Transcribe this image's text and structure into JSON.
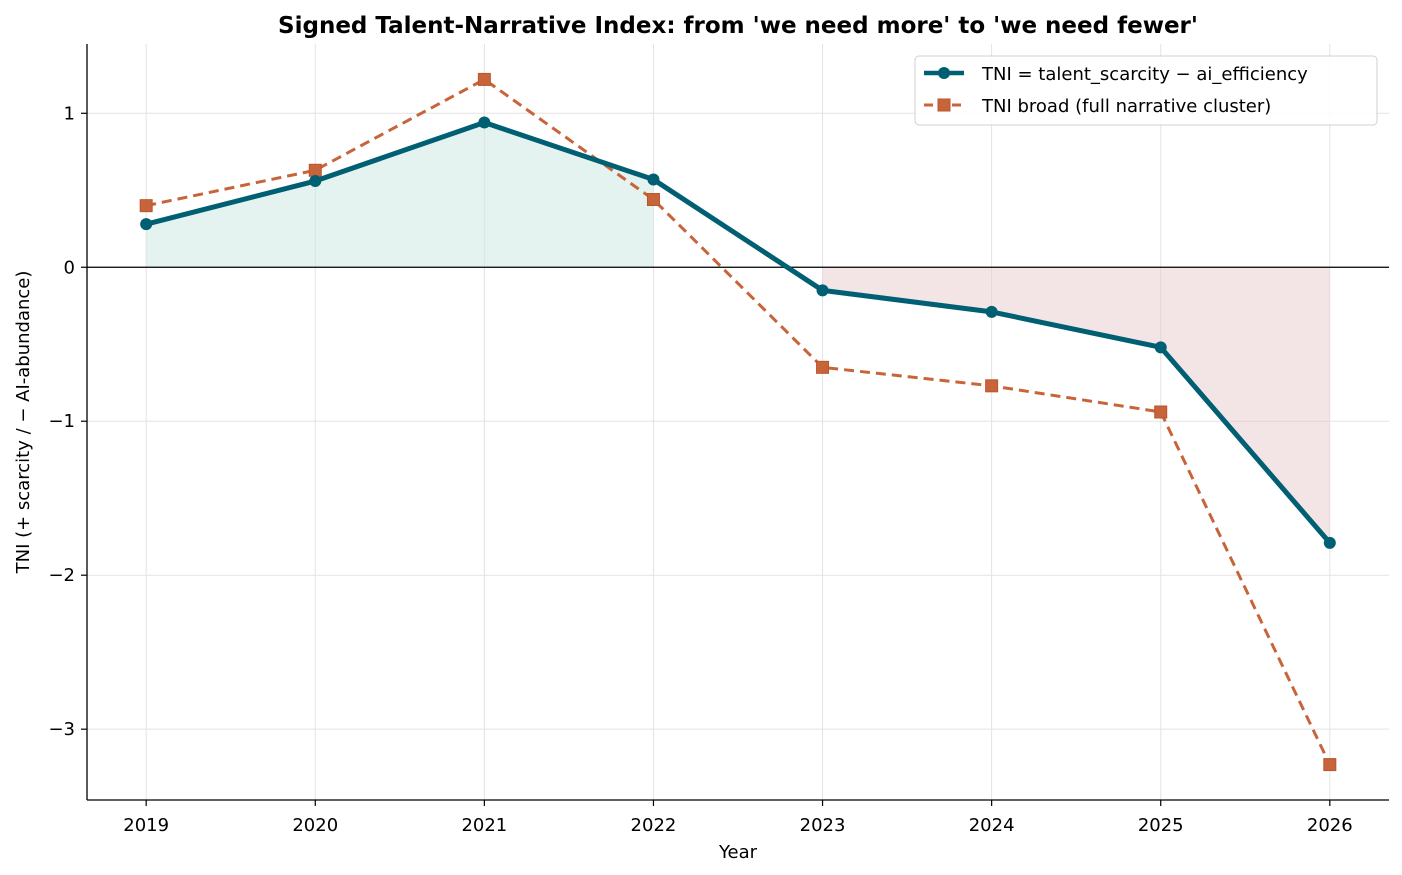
{
  "chart_data": {
    "type": "line",
    "title": "Signed Talent-Narrative Index: from 'we need more' to 'we need fewer'",
    "xlabel": "Year",
    "ylabel": "TNI  (+ scarcity  /  − AI-abundance)",
    "x": [
      2019,
      2020,
      2021,
      2022,
      2023,
      2024,
      2025,
      2026
    ],
    "xlim": [
      2018.65,
      2026.35
    ],
    "ylim": [
      -3.46,
      1.45
    ],
    "yticks": [
      1,
      0,
      -1,
      -2,
      -3
    ],
    "ytick_labels": [
      "1",
      "0",
      "−1",
      "−2",
      "−3"
    ],
    "xtick_labels": [
      "2019",
      "2020",
      "2021",
      "2022",
      "2023",
      "2024",
      "2025",
      "2026"
    ],
    "grid": true,
    "zero_line": true,
    "legend_position": "top-right",
    "series": [
      {
        "name": "TNI = talent_scarcity − ai_efficiency",
        "values": [
          0.28,
          0.56,
          0.94,
          0.57,
          -0.15,
          -0.29,
          -0.52,
          -1.79
        ],
        "color": "#005f73",
        "style": "solid",
        "marker": "circle"
      },
      {
        "name": "TNI broad (full narrative cluster)",
        "values": [
          0.4,
          0.63,
          1.22,
          0.44,
          -0.65,
          -0.77,
          -0.94,
          -3.23
        ],
        "color": "#c8643a",
        "style": "dashed",
        "marker": "square"
      }
    ],
    "fill_positive_color": "#cfe9e4",
    "fill_negative_color": "#e7cccd"
  }
}
